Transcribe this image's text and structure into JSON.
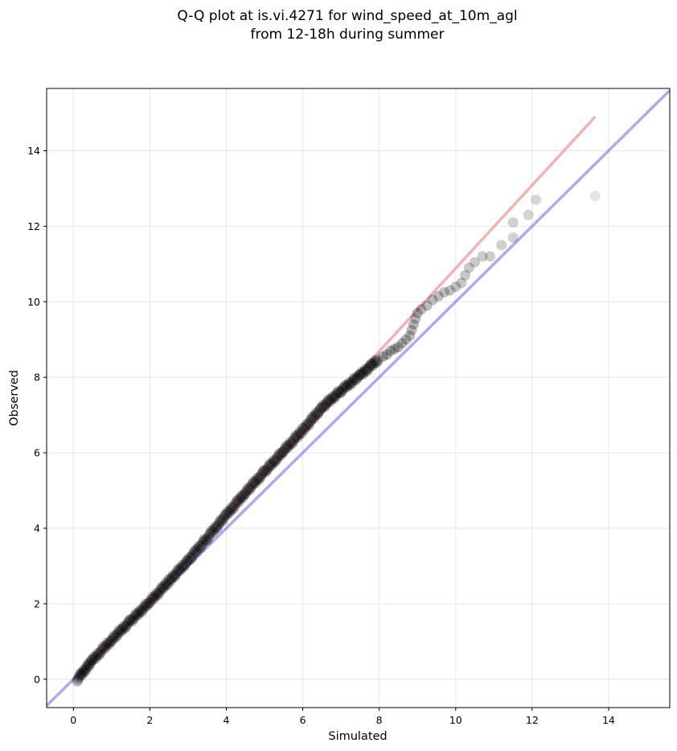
{
  "chart_data": {
    "type": "scatter",
    "title_line1": "Q-Q plot at is.vi.4271 for wind_speed_at_10m_agl",
    "title_line2": "from 12-18h during summer",
    "xlabel": "Simulated",
    "ylabel": "Observed",
    "xlim": [
      -0.7,
      15.6
    ],
    "ylim": [
      -0.75,
      15.65
    ],
    "xticks": [
      0,
      2,
      4,
      6,
      8,
      10,
      12,
      14
    ],
    "yticks": [
      0,
      2,
      4,
      6,
      8,
      10,
      12,
      14
    ],
    "xtick_labels": [
      "0",
      "2",
      "4",
      "6",
      "8",
      "10",
      "12",
      "14"
    ],
    "ytick_labels": [
      "0",
      "2",
      "4",
      "6",
      "8",
      "10",
      "12",
      "14"
    ],
    "grid": true,
    "reference_lines": [
      {
        "kind": "identity",
        "color": "#5555ee",
        "from": [
          -0.7,
          -0.7
        ],
        "to": [
          15.6,
          15.6
        ]
      },
      {
        "kind": "fit",
        "color": "#ee6666",
        "from": [
          0.1,
          0.0
        ],
        "to": [
          13.65,
          14.9
        ]
      }
    ],
    "dense_segments": [
      {
        "x": [
          0.1,
          0.5,
          1.0,
          1.5,
          2.0,
          2.5,
          3.0,
          3.5,
          4.0,
          4.5,
          5.0,
          5.5,
          6.0,
          6.5,
          7.0,
          7.5,
          8.0
        ],
        "y": [
          0.0,
          0.5,
          1.05,
          1.55,
          2.05,
          2.6,
          3.15,
          3.75,
          4.35,
          4.95,
          5.5,
          6.05,
          6.6,
          7.2,
          7.65,
          8.05,
          8.5
        ]
      }
    ],
    "points": [
      {
        "x": 8.1,
        "y": 8.55
      },
      {
        "x": 8.2,
        "y": 8.6
      },
      {
        "x": 8.3,
        "y": 8.7
      },
      {
        "x": 8.4,
        "y": 8.75
      },
      {
        "x": 8.5,
        "y": 8.8
      },
      {
        "x": 8.6,
        "y": 8.9
      },
      {
        "x": 8.7,
        "y": 9.0
      },
      {
        "x": 8.8,
        "y": 9.1
      },
      {
        "x": 8.85,
        "y": 9.25
      },
      {
        "x": 8.9,
        "y": 9.4
      },
      {
        "x": 8.95,
        "y": 9.55
      },
      {
        "x": 9.0,
        "y": 9.7
      },
      {
        "x": 9.1,
        "y": 9.8
      },
      {
        "x": 9.25,
        "y": 9.9
      },
      {
        "x": 9.4,
        "y": 10.05
      },
      {
        "x": 9.55,
        "y": 10.15
      },
      {
        "x": 9.7,
        "y": 10.25
      },
      {
        "x": 9.85,
        "y": 10.3
      },
      {
        "x": 10.0,
        "y": 10.4
      },
      {
        "x": 10.15,
        "y": 10.5
      },
      {
        "x": 10.25,
        "y": 10.7
      },
      {
        "x": 10.35,
        "y": 10.9
      },
      {
        "x": 10.5,
        "y": 11.05
      },
      {
        "x": 10.7,
        "y": 11.2
      },
      {
        "x": 10.9,
        "y": 11.2
      },
      {
        "x": 11.2,
        "y": 11.5
      },
      {
        "x": 11.5,
        "y": 11.7
      },
      {
        "x": 11.5,
        "y": 12.1
      },
      {
        "x": 11.9,
        "y": 12.3
      },
      {
        "x": 12.1,
        "y": 12.7
      },
      {
        "x": 13.65,
        "y": 12.8
      }
    ]
  }
}
